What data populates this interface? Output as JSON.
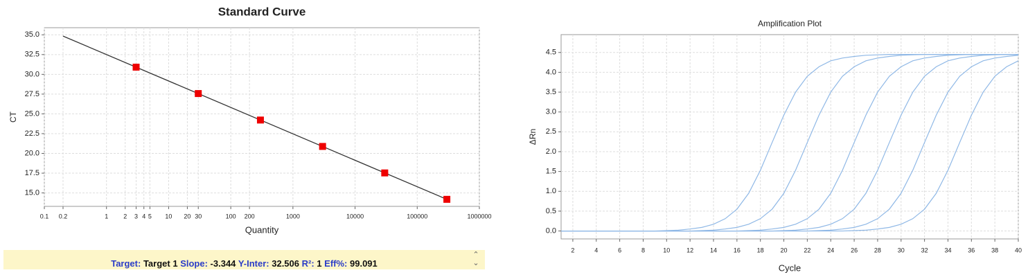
{
  "chart_data": [
    {
      "type": "scatter",
      "title": "Standard Curve",
      "x_label": "Quantity",
      "y_label": "CT",
      "log_x": true,
      "grid": true,
      "x": [
        3,
        30,
        300,
        3000,
        30000,
        300000
      ],
      "series": [
        {
          "color": "#ee0000",
          "values": [
            30.91,
            27.57,
            24.22,
            20.88,
            17.53,
            14.19
          ]
        }
      ],
      "trendline": {
        "color": "#333333",
        "x": [
          0.2,
          300000
        ],
        "values": [
          34.84,
          14.19
        ]
      },
      "xlim": [
        0.1,
        1000000
      ],
      "xticks": [
        0.1,
        0.2,
        1,
        2,
        3,
        4,
        5,
        10,
        20,
        30,
        100,
        200,
        1000,
        10000,
        100000,
        1000000
      ],
      "ylim": [
        13.3,
        35.9
      ],
      "yticks": [
        {
          "value": 15,
          "label": "15.0"
        },
        17.5,
        {
          "value": 20,
          "label": "20.0"
        },
        22.5,
        {
          "value": 25,
          "label": "25.0"
        },
        27.5,
        {
          "value": 30,
          "label": "30.0"
        },
        32.5,
        {
          "value": 35,
          "label": "35.0"
        }
      ]
    },
    {
      "type": "line",
      "title": "Amplification Plot",
      "x_label": "Cycle",
      "y_label": "ΔRn",
      "grid": true,
      "x": [
        1,
        2,
        3,
        4,
        5,
        6,
        7,
        8,
        9,
        10,
        11,
        12,
        13,
        14,
        15,
        16,
        17,
        18,
        19,
        20,
        21,
        22,
        23,
        24,
        25,
        26,
        27,
        28,
        29,
        30,
        31,
        32,
        33,
        34,
        35,
        36,
        37,
        38,
        39,
        40
      ],
      "series": [
        {
          "color": "#8fb8e6",
          "values": [
            0,
            0,
            0,
            0,
            0,
            0,
            0,
            0,
            0,
            0.01,
            0.02,
            0.05,
            0.09,
            0.17,
            0.31,
            0.55,
            0.95,
            1.53,
            2.23,
            2.92,
            3.5,
            3.9,
            4.14,
            4.29,
            4.36,
            4.4,
            4.43,
            4.44,
            4.45,
            4.45,
            4.45,
            4.45,
            4.45,
            4.45,
            4.45,
            4.45,
            4.45,
            4.45,
            4.45,
            4.45
          ]
        },
        {
          "color": "#8fb8e6",
          "values": [
            0,
            0,
            0,
            0,
            0,
            0,
            0,
            0,
            0,
            0,
            0,
            0,
            0.01,
            0.02,
            0.05,
            0.09,
            0.17,
            0.31,
            0.55,
            0.95,
            1.53,
            2.23,
            2.92,
            3.5,
            3.9,
            4.14,
            4.29,
            4.36,
            4.4,
            4.43,
            4.44,
            4.45,
            4.45,
            4.45,
            4.45,
            4.45,
            4.45,
            4.45,
            4.45,
            4.45
          ]
        },
        {
          "color": "#8fb8e6",
          "values": [
            0,
            0,
            0,
            0,
            0,
            0,
            0,
            0,
            0,
            0,
            0,
            0,
            0,
            0,
            0,
            0,
            0.01,
            0.02,
            0.05,
            0.09,
            0.17,
            0.31,
            0.55,
            0.95,
            1.53,
            2.23,
            2.92,
            3.5,
            3.9,
            4.14,
            4.29,
            4.36,
            4.4,
            4.43,
            4.44,
            4.45,
            4.45,
            4.45,
            4.45,
            4.45
          ]
        },
        {
          "color": "#8fb8e6",
          "values": [
            0,
            0,
            0,
            0,
            0,
            0,
            0,
            0,
            0,
            0,
            0,
            0,
            0,
            0,
            0,
            0,
            0,
            0,
            0,
            0.01,
            0.02,
            0.05,
            0.09,
            0.17,
            0.31,
            0.55,
            0.95,
            1.53,
            2.23,
            2.92,
            3.5,
            3.9,
            4.14,
            4.29,
            4.36,
            4.4,
            4.43,
            4.44,
            4.45,
            4.45
          ]
        },
        {
          "color": "#8fb8e6",
          "values": [
            0,
            0,
            0,
            0,
            0,
            0,
            0,
            0,
            0,
            0,
            0,
            0,
            0,
            0,
            0,
            0,
            0,
            0,
            0,
            0,
            0,
            0,
            0.01,
            0.02,
            0.05,
            0.09,
            0.17,
            0.31,
            0.55,
            0.95,
            1.53,
            2.23,
            2.92,
            3.5,
            3.9,
            4.14,
            4.29,
            4.36,
            4.4,
            4.43
          ]
        },
        {
          "color": "#8fb8e6",
          "values": [
            0,
            0,
            0,
            0,
            0,
            0,
            0,
            0,
            0,
            0,
            0,
            0,
            0,
            0,
            0,
            0,
            0,
            0,
            0,
            0,
            0,
            0,
            0,
            0,
            0,
            0.01,
            0.02,
            0.05,
            0.09,
            0.17,
            0.31,
            0.55,
            0.95,
            1.53,
            2.23,
            2.92,
            3.5,
            3.9,
            4.14,
            4.29
          ]
        }
      ],
      "xlim": [
        1,
        40
      ],
      "xticks": [
        2,
        4,
        6,
        8,
        10,
        12,
        14,
        16,
        18,
        20,
        22,
        24,
        26,
        28,
        30,
        32,
        34,
        36,
        38,
        40
      ],
      "ylim": [
        -0.2,
        4.95
      ],
      "yticks": [
        {
          "value": 0,
          "label": "0.0"
        },
        0.5,
        {
          "value": 1,
          "label": "1.0"
        },
        1.5,
        {
          "value": 2,
          "label": "2.0"
        },
        2.5,
        {
          "value": 3,
          "label": "3.0"
        },
        3.5,
        {
          "value": 4,
          "label": "4.0"
        },
        4.5
      ]
    }
  ],
  "status_bar": {
    "target_label": "Target:",
    "target": "Target 1",
    "slope_label": "Slope:",
    "slope": "-3.344",
    "intercept_label": "Y-Inter:",
    "intercept": "32.506",
    "r2_label": "R²:",
    "r2": "1",
    "eff_label": "Eff%:",
    "eff": "99.091"
  }
}
